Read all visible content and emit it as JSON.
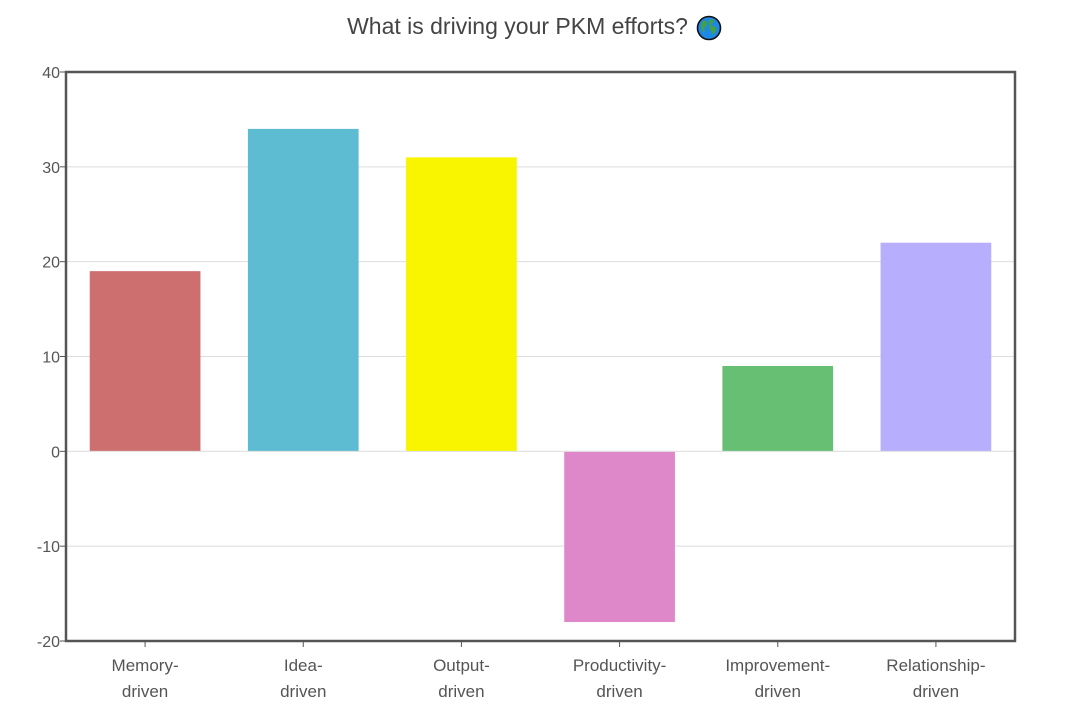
{
  "chart_data": {
    "type": "bar",
    "title": "What is driving your PKM efforts?",
    "title_icon": "globe-icon",
    "categories": [
      [
        "Memory-",
        "driven"
      ],
      [
        "Idea-",
        "driven"
      ],
      [
        "Output-",
        "driven"
      ],
      [
        "Productivity-",
        "driven"
      ],
      [
        "Improvement-",
        "driven"
      ],
      [
        "Relationship-",
        "driven"
      ]
    ],
    "values": [
      19,
      34,
      31,
      -18,
      9,
      22
    ],
    "colors": [
      "#cd6f6f",
      "#5dbbd2",
      "#f9f500",
      "#de88ca",
      "#67bf73",
      "#b8aefe"
    ],
    "ylim": [
      -20,
      40
    ],
    "yticks": [
      "40",
      "30",
      "20",
      "10",
      "0",
      "-10",
      "-20"
    ],
    "grid": true,
    "xlabel": "",
    "ylabel": ""
  }
}
